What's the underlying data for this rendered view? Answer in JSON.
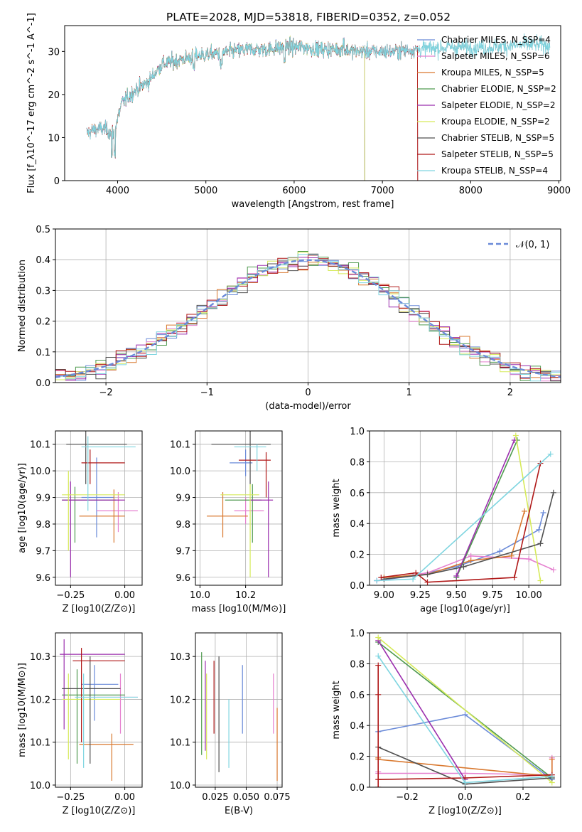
{
  "colors": {
    "chabrier_miles": "#6a8ad8",
    "salpeter_miles": "#e57fcf",
    "kroupa_miles": "#d9782e",
    "chabrier_elodie": "#4f9a4f",
    "salpeter_elodie": "#9b2fae",
    "kroupa_elodie": "#d6ea5a",
    "chabrier_stelib": "#505050",
    "salpeter_stelib": "#b01919",
    "kroupa_stelib": "#7fd5e0",
    "gaussian": "#6a8ad8"
  },
  "chart_data": [
    {
      "id": "spectrum",
      "type": "line",
      "title": "PLATE=2028, MJD=53818, FIBERID=0352, z=0.052",
      "xlabel": "wavelength [Angstrom, rest frame]",
      "ylabel": "Flux [f_λ10^-17 erg cm^-2 s^-1 A^-1]",
      "xlim": [
        3400,
        9020
      ],
      "ylim": [
        0,
        36
      ],
      "xticks": [
        "4000",
        "5000",
        "6000",
        "7000",
        "8000",
        "9000"
      ],
      "yticks": [
        "0",
        "10",
        "20",
        "30"
      ],
      "legend_position": "top-right",
      "series": [
        {
          "name": "Chabrier MILES, N_SSP=4",
          "color_key": "chabrier_miles"
        },
        {
          "name": "Salpeter MILES, N_SSP=6",
          "color_key": "salpeter_miles"
        },
        {
          "name": "Kroupa MILES, N_SSP=5",
          "color_key": "kroupa_miles"
        },
        {
          "name": "Chabrier ELODIE, N_SSP=2",
          "color_key": "chabrier_elodie"
        },
        {
          "name": "Salpeter ELODIE, N_SSP=2",
          "color_key": "salpeter_elodie"
        },
        {
          "name": "Kroupa ELODIE, N_SSP=2",
          "color_key": "kroupa_elodie"
        },
        {
          "name": "Chabrier STELIB, N_SSP=5",
          "color_key": "chabrier_stelib"
        },
        {
          "name": "Salpeter STELIB, N_SSP=5",
          "color_key": "salpeter_stelib"
        },
        {
          "name": "Kroupa STELIB, N_SSP=4",
          "color_key": "kroupa_stelib"
        }
      ],
      "continuum": {
        "x": [
          3650,
          3750,
          3850,
          3950,
          4050,
          4200,
          4350,
          4500,
          4700,
          4900,
          5100,
          5300,
          5500,
          5700,
          5900,
          6100,
          6300,
          6500,
          6700,
          6900,
          7100,
          7400,
          7800,
          8200,
          8600,
          9000
        ],
        "y": [
          11,
          12,
          12,
          11,
          18,
          21,
          23,
          27,
          28,
          29,
          29.5,
          30,
          30.5,
          30.5,
          31,
          31,
          30.5,
          30.5,
          30,
          30,
          30,
          30.5,
          31,
          31,
          31.5,
          31.5
        ]
      }
    },
    {
      "id": "residuals",
      "type": "line",
      "xlabel": "(data-model)/error",
      "ylabel": "Normed distribution",
      "xlim": [
        -2.5,
        2.5
      ],
      "ylim": [
        0,
        0.5
      ],
      "xticks": [
        "−2",
        "−1",
        "0",
        "1",
        "2"
      ],
      "yticks": [
        "0.0",
        "0.1",
        "0.2",
        "0.3",
        "0.4",
        "0.5"
      ],
      "legend_position": "top-right",
      "gaussian_label": "𝒩(0, 1)",
      "bin_width": 0.1
    },
    {
      "id": "age_vs_Z",
      "type": "scatter",
      "xlabel": "Z [log10(Z/Z⊙)]",
      "ylabel": "age [log10(age/yr)]",
      "xlim": [
        -0.32,
        0.08
      ],
      "ylim": [
        9.57,
        10.15
      ],
      "xticks": [
        "−0.25",
        "0.00"
      ],
      "yticks": [
        "9.6",
        "9.7",
        "9.8",
        "9.9",
        "10.0",
        "10.1"
      ],
      "points": [
        {
          "c": "chabrier_miles",
          "x": -0.13,
          "xl": -0.2,
          "xh": -0.05,
          "y": 9.9,
          "yl": 9.75,
          "yh": 10.05
        },
        {
          "c": "salpeter_miles",
          "x": -0.03,
          "xl": -0.13,
          "xh": 0.06,
          "y": 9.85,
          "yl": 9.77,
          "yh": 9.92
        },
        {
          "c": "kroupa_miles",
          "x": -0.05,
          "xl": -0.21,
          "xh": 0.0,
          "y": 9.83,
          "yl": 9.73,
          "yh": 9.93
        },
        {
          "c": "chabrier_elodie",
          "x": -0.23,
          "xl": -0.29,
          "xh": -0.04,
          "y": 9.89,
          "yl": 9.73,
          "yh": 9.94
        },
        {
          "c": "salpeter_elodie",
          "x": -0.25,
          "xl": -0.29,
          "xh": 0.0,
          "y": 9.89,
          "yl": 9.6,
          "yh": 9.96
        },
        {
          "c": "kroupa_elodie",
          "x": -0.26,
          "xl": -0.29,
          "xh": 0.0,
          "y": 9.91,
          "yl": 9.7,
          "yh": 10.0
        },
        {
          "c": "chabrier_stelib",
          "x": -0.18,
          "xl": -0.27,
          "xh": 0.01,
          "y": 10.1,
          "yl": 9.95,
          "yh": 10.15
        },
        {
          "c": "salpeter_stelib",
          "x": -0.16,
          "xl": -0.2,
          "xh": 0.0,
          "y": 10.03,
          "yl": 9.95,
          "yh": 10.08
        },
        {
          "c": "kroupa_stelib",
          "x": -0.17,
          "xl": -0.2,
          "xh": 0.05,
          "y": 10.09,
          "yl": 9.85,
          "yh": 10.13
        }
      ]
    },
    {
      "id": "age_vs_mass",
      "type": "scatter",
      "xlabel": "mass [log10(M/M⊙)]",
      "xlim": [
        9.98,
        10.36
      ],
      "ylim": [
        9.57,
        10.15
      ],
      "xticks": [
        "10.0",
        "10.2"
      ],
      "yticks": [
        "9.6",
        "9.7",
        "9.8",
        "9.9",
        "10.0",
        "10.1"
      ],
      "points": [
        {
          "c": "chabrier_miles",
          "x": 10.2,
          "xl": 10.13,
          "xh": 10.23,
          "y": 10.03,
          "yl": 9.98,
          "yh": 10.08
        },
        {
          "c": "salpeter_miles",
          "x": 10.2,
          "xl": 10.15,
          "xh": 10.28,
          "y": 9.85,
          "yl": 9.8,
          "yh": 9.9
        },
        {
          "c": "kroupa_miles",
          "x": 10.1,
          "xl": 10.03,
          "xh": 10.21,
          "y": 9.83,
          "yl": 9.75,
          "yh": 9.92
        },
        {
          "c": "chabrier_elodie",
          "x": 10.23,
          "xl": 10.11,
          "xh": 10.27,
          "y": 9.89,
          "yl": 9.73,
          "yh": 9.95
        },
        {
          "c": "salpeter_elodie",
          "x": 10.3,
          "xl": 10.22,
          "xh": 10.32,
          "y": 9.89,
          "yl": 9.6,
          "yh": 9.96
        },
        {
          "c": "kroupa_elodie",
          "x": 10.22,
          "xl": 10.09,
          "xh": 10.26,
          "y": 9.91,
          "yl": 9.6,
          "yh": 9.95
        },
        {
          "c": "chabrier_stelib",
          "x": 10.22,
          "xl": 10.05,
          "xh": 10.31,
          "y": 10.1,
          "yl": 9.95,
          "yh": 10.15
        },
        {
          "c": "salpeter_stelib",
          "x": 10.29,
          "xl": 10.17,
          "xh": 10.31,
          "y": 10.04,
          "yl": 9.9,
          "yh": 10.07
        },
        {
          "c": "kroupa_stelib",
          "x": 10.25,
          "xl": 10.15,
          "xh": 10.29,
          "y": 10.09,
          "yl": 10.0,
          "yh": 10.1
        }
      ]
    },
    {
      "id": "weight_vs_age",
      "type": "line",
      "xlabel": "age [log10(age/yr)]",
      "ylabel": "mass weight",
      "xlim": [
        8.9,
        10.22
      ],
      "ylim": [
        0,
        1.0
      ],
      "xticks": [
        "9.00",
        "9.25",
        "9.50",
        "9.75",
        "10.00"
      ],
      "yticks": [
        "0.0",
        "0.2",
        "0.4",
        "0.6",
        "0.8",
        "1.0"
      ],
      "series": [
        {
          "c": "chabrier_miles",
          "x": [
            8.95,
            9.2,
            9.5,
            9.8,
            10.07,
            10.1
          ],
          "y": [
            0.03,
            0.06,
            0.12,
            0.22,
            0.36,
            0.47
          ]
        },
        {
          "c": "salpeter_miles",
          "x": [
            8.95,
            9.3,
            9.6,
            10.0,
            10.17
          ],
          "y": [
            0.03,
            0.08,
            0.19,
            0.17,
            0.1
          ]
        },
        {
          "c": "kroupa_miles",
          "x": [
            9.0,
            9.3,
            9.6,
            9.88,
            9.97
          ],
          "y": [
            0.05,
            0.07,
            0.16,
            0.19,
            0.48
          ]
        },
        {
          "c": "chabrier_elodie",
          "x": [
            9.5,
            9.92
          ],
          "y": [
            0.05,
            0.94
          ]
        },
        {
          "c": "salpeter_elodie",
          "x": [
            9.5,
            9.9
          ],
          "y": [
            0.06,
            0.94
          ]
        },
        {
          "c": "kroupa_elodie",
          "x": [
            9.91,
            10.08
          ],
          "y": [
            0.97,
            0.03
          ]
        },
        {
          "c": "chabrier_stelib",
          "x": [
            9.0,
            9.3,
            9.55,
            10.08,
            10.17
          ],
          "y": [
            0.04,
            0.07,
            0.12,
            0.27,
            0.6
          ]
        },
        {
          "c": "salpeter_stelib",
          "x": [
            8.98,
            9.22,
            9.3,
            9.9,
            10.08
          ],
          "y": [
            0.05,
            0.08,
            0.02,
            0.05,
            0.79
          ]
        },
        {
          "c": "kroupa_stelib",
          "x": [
            8.95,
            9.2,
            10.15
          ],
          "y": [
            0.03,
            0.04,
            0.85
          ]
        }
      ]
    },
    {
      "id": "mass_vs_Z",
      "type": "scatter",
      "xlabel": "Z [log10(Z/Z⊙)]",
      "ylabel": "mass [log10(M/M⊙)]",
      "xlim": [
        -0.32,
        0.08
      ],
      "ylim": [
        9.995,
        10.355
      ],
      "xticks": [
        "−0.25",
        "0.00"
      ],
      "yticks": [
        "10.0",
        "10.1",
        "10.2",
        "10.3"
      ],
      "points": [
        {
          "c": "chabrier_miles",
          "x": -0.14,
          "xl": -0.2,
          "xh": -0.03,
          "y": 10.235,
          "yl": 10.15,
          "yh": 10.28
        },
        {
          "c": "salpeter_miles",
          "x": -0.02,
          "xl": -0.13,
          "xh": 0.06,
          "y": 10.205,
          "yl": 10.12,
          "yh": 10.26
        },
        {
          "c": "kroupa_miles",
          "x": -0.06,
          "xl": -0.21,
          "xh": 0.04,
          "y": 10.095,
          "yl": 10.01,
          "yh": 10.12
        },
        {
          "c": "chabrier_elodie",
          "x": -0.22,
          "xl": -0.29,
          "xh": 0.0,
          "y": 10.21,
          "yl": 10.05,
          "yh": 10.27
        },
        {
          "c": "salpeter_elodie",
          "x": -0.28,
          "xl": -0.3,
          "xh": 0.0,
          "y": 10.305,
          "yl": 10.13,
          "yh": 10.34
        },
        {
          "c": "kroupa_elodie",
          "x": -0.26,
          "xl": -0.29,
          "xh": -0.02,
          "y": 10.2,
          "yl": 10.06,
          "yh": 10.26
        },
        {
          "c": "chabrier_stelib",
          "x": -0.16,
          "xl": -0.29,
          "xh": -0.02,
          "y": 10.225,
          "yl": 10.05,
          "yh": 10.3
        },
        {
          "c": "salpeter_stelib",
          "x": -0.2,
          "xl": -0.24,
          "xh": 0.0,
          "y": 10.29,
          "yl": 10.1,
          "yh": 10.32
        },
        {
          "c": "kroupa_stelib",
          "x": -0.19,
          "xl": -0.23,
          "xh": 0.06,
          "y": 10.205,
          "yl": 10.04,
          "yh": 10.26
        }
      ]
    },
    {
      "id": "mass_vs_ebv",
      "type": "scatter",
      "xlabel": "E(B-V)",
      "xlim": [
        0.009,
        0.079
      ],
      "ylim": [
        9.995,
        10.355
      ],
      "xticks": [
        "0.025",
        "0.050",
        "0.075"
      ],
      "yticks": [
        "10.0",
        "10.1",
        "10.2",
        "10.3"
      ],
      "points": [
        {
          "c": "chabrier_miles",
          "x": 0.047,
          "y": 10.2,
          "yl": 10.12,
          "yh": 10.28
        },
        {
          "c": "salpeter_miles",
          "x": 0.072,
          "y": 10.2,
          "yl": 10.12,
          "yh": 10.26
        },
        {
          "c": "kroupa_miles",
          "x": 0.075,
          "y": 10.1,
          "yl": 10.01,
          "yh": 10.18
        },
        {
          "c": "chabrier_elodie",
          "x": 0.014,
          "y": 10.2,
          "yl": 10.07,
          "yh": 10.31
        },
        {
          "c": "salpeter_elodie",
          "x": 0.017,
          "y": 10.2,
          "yl": 10.08,
          "yh": 10.29
        },
        {
          "c": "kroupa_elodie",
          "x": 0.018,
          "y": 10.15,
          "yl": 10.06,
          "yh": 10.26
        },
        {
          "c": "chabrier_stelib",
          "x": 0.028,
          "y": 10.15,
          "yl": 10.03,
          "yh": 10.3
        },
        {
          "c": "salpeter_stelib",
          "x": 0.024,
          "y": 10.2,
          "yl": 10.12,
          "yh": 10.29
        },
        {
          "c": "kroupa_stelib",
          "x": 0.036,
          "y": 10.15,
          "yl": 10.04,
          "yh": 10.2
        }
      ]
    },
    {
      "id": "weight_vs_Z",
      "type": "line",
      "xlabel": "Z [log10(Z/Z⊙)]",
      "ylabel": "mass weight",
      "xlim": [
        -0.33,
        0.33
      ],
      "ylim": [
        0,
        1.0
      ],
      "xticks": [
        "−0.2",
        "0.0",
        "0.2"
      ],
      "yticks": [
        "0.0",
        "0.2",
        "0.4",
        "0.6",
        "0.8",
        "1.0"
      ],
      "series": [
        {
          "c": "chabrier_miles",
          "x": [
            -0.3,
            0.0,
            0.3
          ],
          "y": [
            0.36,
            0.47,
            0.05
          ]
        },
        {
          "c": "salpeter_miles",
          "x": [
            -0.3,
            -0.3,
            0.0,
            0.3,
            0.3
          ],
          "y": [
            0.1,
            0.09,
            0.09,
            0.08,
            0.19
          ]
        },
        {
          "c": "kroupa_miles",
          "x": [
            -0.3,
            -0.3,
            0.3,
            0.3
          ],
          "y": [
            0.19,
            0.18,
            0.07,
            0.18
          ]
        },
        {
          "c": "chabrier_elodie",
          "x": [
            -0.3,
            0.3
          ],
          "y": [
            0.94,
            0.06
          ]
        },
        {
          "c": "salpeter_elodie",
          "x": [
            -0.3,
            0.0
          ],
          "y": [
            0.95,
            0.05
          ]
        },
        {
          "c": "kroupa_elodie",
          "x": [
            -0.3,
            0.3
          ],
          "y": [
            0.97,
            0.03
          ]
        },
        {
          "c": "chabrier_stelib",
          "x": [
            -0.3,
            0.0,
            0.3
          ],
          "y": [
            0.26,
            0.02,
            0.06
          ]
        },
        {
          "c": "salpeter_stelib",
          "x": [
            -0.3,
            -0.3,
            -0.3,
            -0.3,
            0.0,
            0.3
          ],
          "y": [
            0.0,
            0.6,
            0.79,
            0.05,
            0.06,
            0.08
          ]
        },
        {
          "c": "kroupa_stelib",
          "x": [
            -0.3,
            0.0,
            0.3
          ],
          "y": [
            0.85,
            0.03,
            0.07
          ]
        }
      ]
    }
  ]
}
